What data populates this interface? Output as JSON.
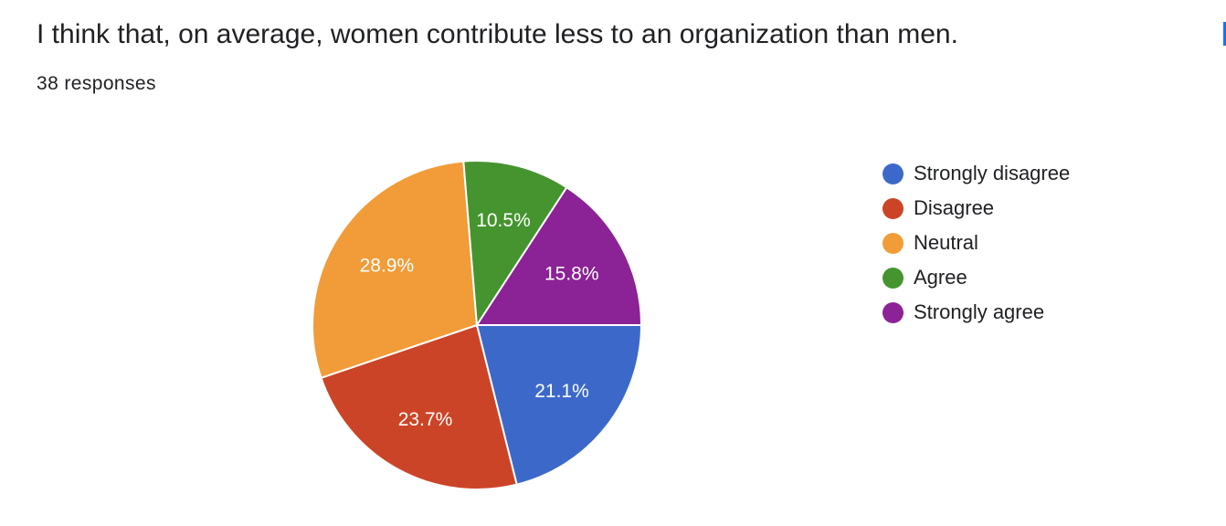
{
  "question": {
    "title": "I think that, on average, women contribute less to an organization than men.",
    "responses": "38 responses"
  },
  "chart_data": {
    "type": "pie",
    "title": "I think that, on average, women contribute less to an organization than men.",
    "categories": [
      "Strongly disagree",
      "Disagree",
      "Neutral",
      "Agree",
      "Strongly agree"
    ],
    "values": [
      21.1,
      23.7,
      28.9,
      10.5,
      15.8
    ],
    "labels": [
      "21.1%",
      "23.7%",
      "28.9%",
      "10.5%",
      "15.8%"
    ],
    "colors": [
      "#3c69c9",
      "#cc4427",
      "#f19c38",
      "#45942f",
      "#8b2295"
    ],
    "legend_position": "right",
    "start": "3 o'clock",
    "direction": "clockwise"
  },
  "legend": {
    "items": [
      "Strongly disagree",
      "Disagree",
      "Neutral",
      "Agree",
      "Strongly agree"
    ]
  }
}
